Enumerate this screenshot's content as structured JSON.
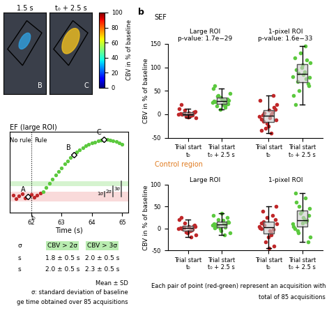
{
  "images": {
    "titles": [
      "1.5 s",
      "t₀ + 2.5 s"
    ],
    "labels": [
      "B",
      "C"
    ]
  },
  "chart_data": [
    {
      "type": "colorbar",
      "label": "CBV in % of baseline",
      "ylim": [
        0,
        100
      ],
      "yticks": [
        0,
        20,
        40,
        60,
        80,
        100
      ]
    },
    {
      "type": "scatter",
      "title": "EF (large ROI)",
      "xlabel": "Time (s)",
      "xlim": [
        61.3,
        65.2
      ],
      "xticks": [
        62,
        63,
        64,
        65
      ],
      "ylim": [
        -25,
        100
      ],
      "tick_labels": "x",
      "series": [
        {
          "color": "#c0282a",
          "x": [
            61.4,
            61.5,
            61.6,
            61.7,
            61.8,
            61.9,
            62.0,
            62.1,
            62.2,
            62.3
          ],
          "values": [
            2,
            -3,
            1,
            4,
            -2,
            0,
            3,
            -1,
            2,
            5
          ]
        },
        {
          "color": "#5cc93f",
          "x": [
            62.4,
            62.5,
            62.6,
            62.7,
            62.8,
            62.9,
            63.0,
            63.1,
            63.2,
            63.3,
            63.4,
            63.5,
            63.6,
            63.7,
            63.8,
            63.9,
            64.0,
            64.1,
            64.2,
            64.3,
            64.4,
            64.5,
            64.6,
            64.7,
            64.8,
            64.9,
            65.0
          ],
          "values": [
            8,
            14,
            20,
            27,
            33,
            38,
            44,
            50,
            55,
            60,
            64,
            68,
            72,
            75,
            78,
            80,
            82,
            84,
            86,
            87,
            88,
            88,
            87,
            86,
            85,
            82,
            80
          ]
        }
      ],
      "annotations": [
        {
          "text": "A",
          "x": 61.9,
          "y": 0
        },
        {
          "text": "B",
          "x": 63.4,
          "y": 64
        },
        {
          "text": "C",
          "x": 64.4,
          "y": 88
        }
      ],
      "regions": [
        "No rule",
        "Rule"
      ],
      "rule_start": 62,
      "rule_label": "t₀",
      "sigma": 8,
      "sigma_labels": [
        "1σ",
        "2σ",
        "3σ"
      ]
    },
    {
      "type": "swarm",
      "panel": "b",
      "title": "SEF",
      "ylabel": "CBV in % of baseline",
      "groups": [
        {
          "title": "Large ROI",
          "subtitle": "p-value: 1.7e−29"
        },
        {
          "title": "1-pixel ROI",
          "subtitle": "p-value: 1.6e−33"
        }
      ],
      "categories": [
        "Trial start\nt₀",
        "Trial start\nt₀ + 2.5 s",
        "Trial start\nt₀",
        "Trial start\nt₀ + 2.5 s"
      ],
      "colors": [
        "#c0282a",
        "#5cc93f",
        "#c0282a",
        "#5cc93f"
      ],
      "ylim": [
        -50,
        150
      ],
      "yticks": [
        -50,
        0,
        50,
        100,
        150
      ],
      "values": [
        [
          0,
          -3,
          2,
          5,
          -5,
          1,
          -2,
          8,
          -8,
          3,
          0,
          4,
          -4,
          12,
          -1,
          2,
          6,
          -6,
          20,
          -2
        ],
        [
          25,
          30,
          18,
          22,
          35,
          28,
          15,
          40,
          45,
          20,
          26,
          32,
          10,
          55,
          24,
          38,
          29,
          33,
          60,
          21
        ],
        [
          -5,
          0,
          -15,
          10,
          -25,
          -10,
          5,
          -30,
          20,
          -8,
          -2,
          15,
          -20,
          30,
          -40,
          3,
          -12,
          8,
          -35,
          40
        ],
        [
          80,
          90,
          70,
          60,
          100,
          120,
          75,
          50,
          110,
          85,
          95,
          65,
          130,
          40,
          145,
          88,
          78,
          105,
          20,
          115
        ]
      ]
    },
    {
      "type": "swarm",
      "title": "Control region",
      "ylabel": "CBV in % of baseline",
      "groups": [
        {
          "title": "Large ROI"
        },
        {
          "title": "1-pixel ROI"
        }
      ],
      "categories": [
        "Trial start\nt₀",
        "Trial start\nt₀ + 2.5 s",
        "Trial start\nt₀",
        "Trial start\nt₀ + 2.5 s"
      ],
      "colors": [
        "#c0282a",
        "#5cc93f",
        "#c0282a",
        "#5cc93f"
      ],
      "ylim": [
        -50,
        100
      ],
      "yticks": [
        -50,
        0,
        50,
        100
      ],
      "values": [
        [
          0,
          -5,
          3,
          8,
          -10,
          2,
          -3,
          12,
          -15,
          5,
          -1,
          6,
          -8,
          20,
          -20,
          1,
          4,
          -6,
          25,
          -2
        ],
        [
          8,
          12,
          5,
          15,
          -5,
          10,
          3,
          20,
          -10,
          18,
          9,
          25,
          0,
          30,
          -15,
          6,
          14,
          35,
          2,
          11
        ],
        [
          5,
          -10,
          15,
          20,
          -20,
          0,
          30,
          -30,
          10,
          -5,
          40,
          -40,
          25,
          2,
          -15,
          8,
          50,
          -45,
          12,
          -2
        ],
        [
          10,
          20,
          -5,
          30,
          40,
          0,
          15,
          50,
          -20,
          25,
          60,
          -30,
          35,
          5,
          70,
          -10,
          45,
          12,
          80,
          18
        ]
      ]
    }
  ],
  "table": {
    "header": [
      "σ",
      "CBV > 2σ",
      "CBV > 3σ"
    ],
    "rows": [
      [
        "s",
        "1.8 ± 0.5 s",
        "2.0 ± 0.5 s"
      ],
      [
        "s",
        "2.0 ± 0.5 s",
        "2.3 ± 0.5 s"
      ]
    ]
  },
  "notes": [
    "Mean ± SD",
    "σ: standard deviation of baseline",
    "ge time obtained over 85 acquisitions"
  ],
  "footer": [
    "Each pair of point (red-green) represent an acquisition with",
    "total of 85 acquisitions"
  ]
}
